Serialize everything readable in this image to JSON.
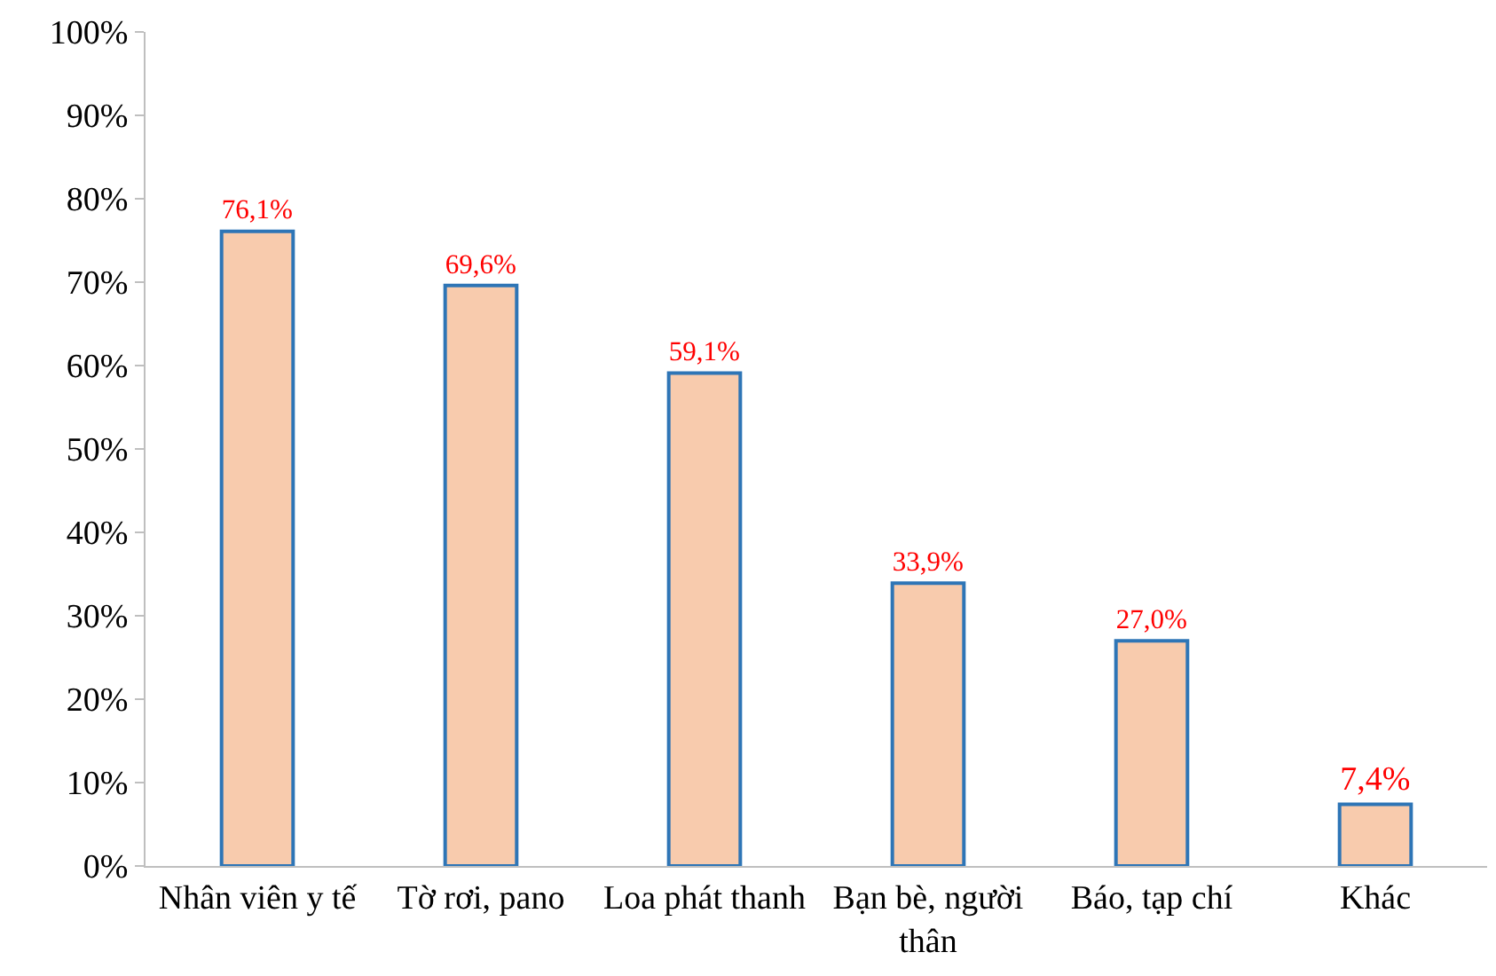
{
  "chart_data": {
    "type": "bar",
    "categories": [
      "Nhân viên y tế",
      "Tờ rơi, pano",
      "Loa phát thanh",
      "Bạn bè, người thân",
      "Báo, tạp chí",
      "Khác"
    ],
    "values": [
      76.1,
      69.6,
      59.1,
      33.9,
      27.0,
      7.4
    ],
    "value_labels": [
      "76,1%",
      "69,6%",
      "59,1%",
      "33,9%",
      "27,0%",
      "7,4%"
    ],
    "color": "#f8cbad",
    "ylim": [
      0,
      100
    ],
    "yticks": [
      {
        "value": 0,
        "label": "0%"
      },
      {
        "value": 10,
        "label": "10%"
      },
      {
        "value": 20,
        "label": "20%"
      },
      {
        "value": 30,
        "label": "30%"
      },
      {
        "value": 40,
        "label": "40%"
      },
      {
        "value": 50,
        "label": "50%"
      },
      {
        "value": 60,
        "label": "60%"
      },
      {
        "value": 70,
        "label": "70%"
      },
      {
        "value": 80,
        "label": "80%"
      },
      {
        "value": 90,
        "label": "90%"
      },
      {
        "value": 100,
        "label": "100%"
      }
    ],
    "grid": false,
    "legend": false
  }
}
